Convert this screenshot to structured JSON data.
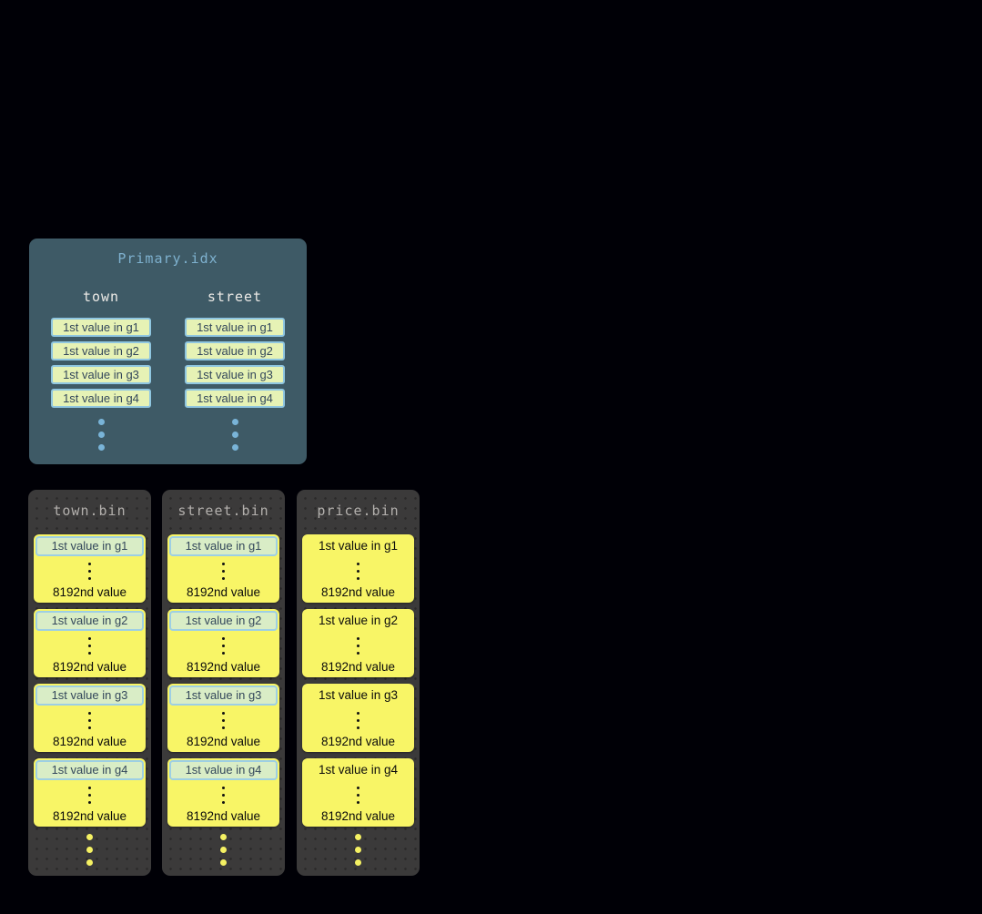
{
  "colors": {
    "page_background": "#000006",
    "primary_box_background": "#3e5a66",
    "primary_title_text": "#7eb1cf",
    "primary_header_text": "#eceae6",
    "index_chip_background": "#e6f2b5",
    "index_chip_border": "#8fc6e0",
    "index_chip_text": "#33475b",
    "blue_dot": "#79b4d8",
    "bin_background": "#3b3a3a",
    "bin_title_text": "#b3b0ad",
    "granule_card_background": "#f8f566",
    "granule_chip_background": "#d9edc6",
    "granule_chip_border": "#9dcfe4",
    "granule_text": "#0b0b0b",
    "yellow_dot": "#f5f163"
  },
  "primary_index": {
    "title": "Primary.idx",
    "ellipsis_dots": 3,
    "columns": [
      {
        "header": "town",
        "entries": [
          "1st value in g1",
          "1st value in g2",
          "1st value in g3",
          "1st value in g4"
        ]
      },
      {
        "header": "street",
        "entries": [
          "1st value in g1",
          "1st value in g2",
          "1st value in g3",
          "1st value in g4"
        ]
      }
    ]
  },
  "bins": [
    {
      "title": "town.bin",
      "first_value_highlighted": true,
      "ellipsis_dots": 3,
      "granules": [
        {
          "first": "1st value in g1",
          "last": "8192nd value"
        },
        {
          "first": "1st value in g2",
          "last": "8192nd value"
        },
        {
          "first": "1st value in g3",
          "last": "8192nd value"
        },
        {
          "first": "1st value in g4",
          "last": "8192nd value"
        }
      ]
    },
    {
      "title": "street.bin",
      "first_value_highlighted": true,
      "ellipsis_dots": 3,
      "granules": [
        {
          "first": "1st value in g1",
          "last": "8192nd value"
        },
        {
          "first": "1st value in g2",
          "last": "8192nd value"
        },
        {
          "first": "1st value in g3",
          "last": "8192nd value"
        },
        {
          "first": "1st value in g4",
          "last": "8192nd value"
        }
      ]
    },
    {
      "title": "price.bin",
      "first_value_highlighted": false,
      "ellipsis_dots": 3,
      "granules": [
        {
          "first": "1st value in g1",
          "last": "8192nd value"
        },
        {
          "first": "1st value in g2",
          "last": "8192nd value"
        },
        {
          "first": "1st value in g3",
          "last": "8192nd value"
        },
        {
          "first": "1st value in g4",
          "last": "8192nd value"
        }
      ]
    }
  ]
}
